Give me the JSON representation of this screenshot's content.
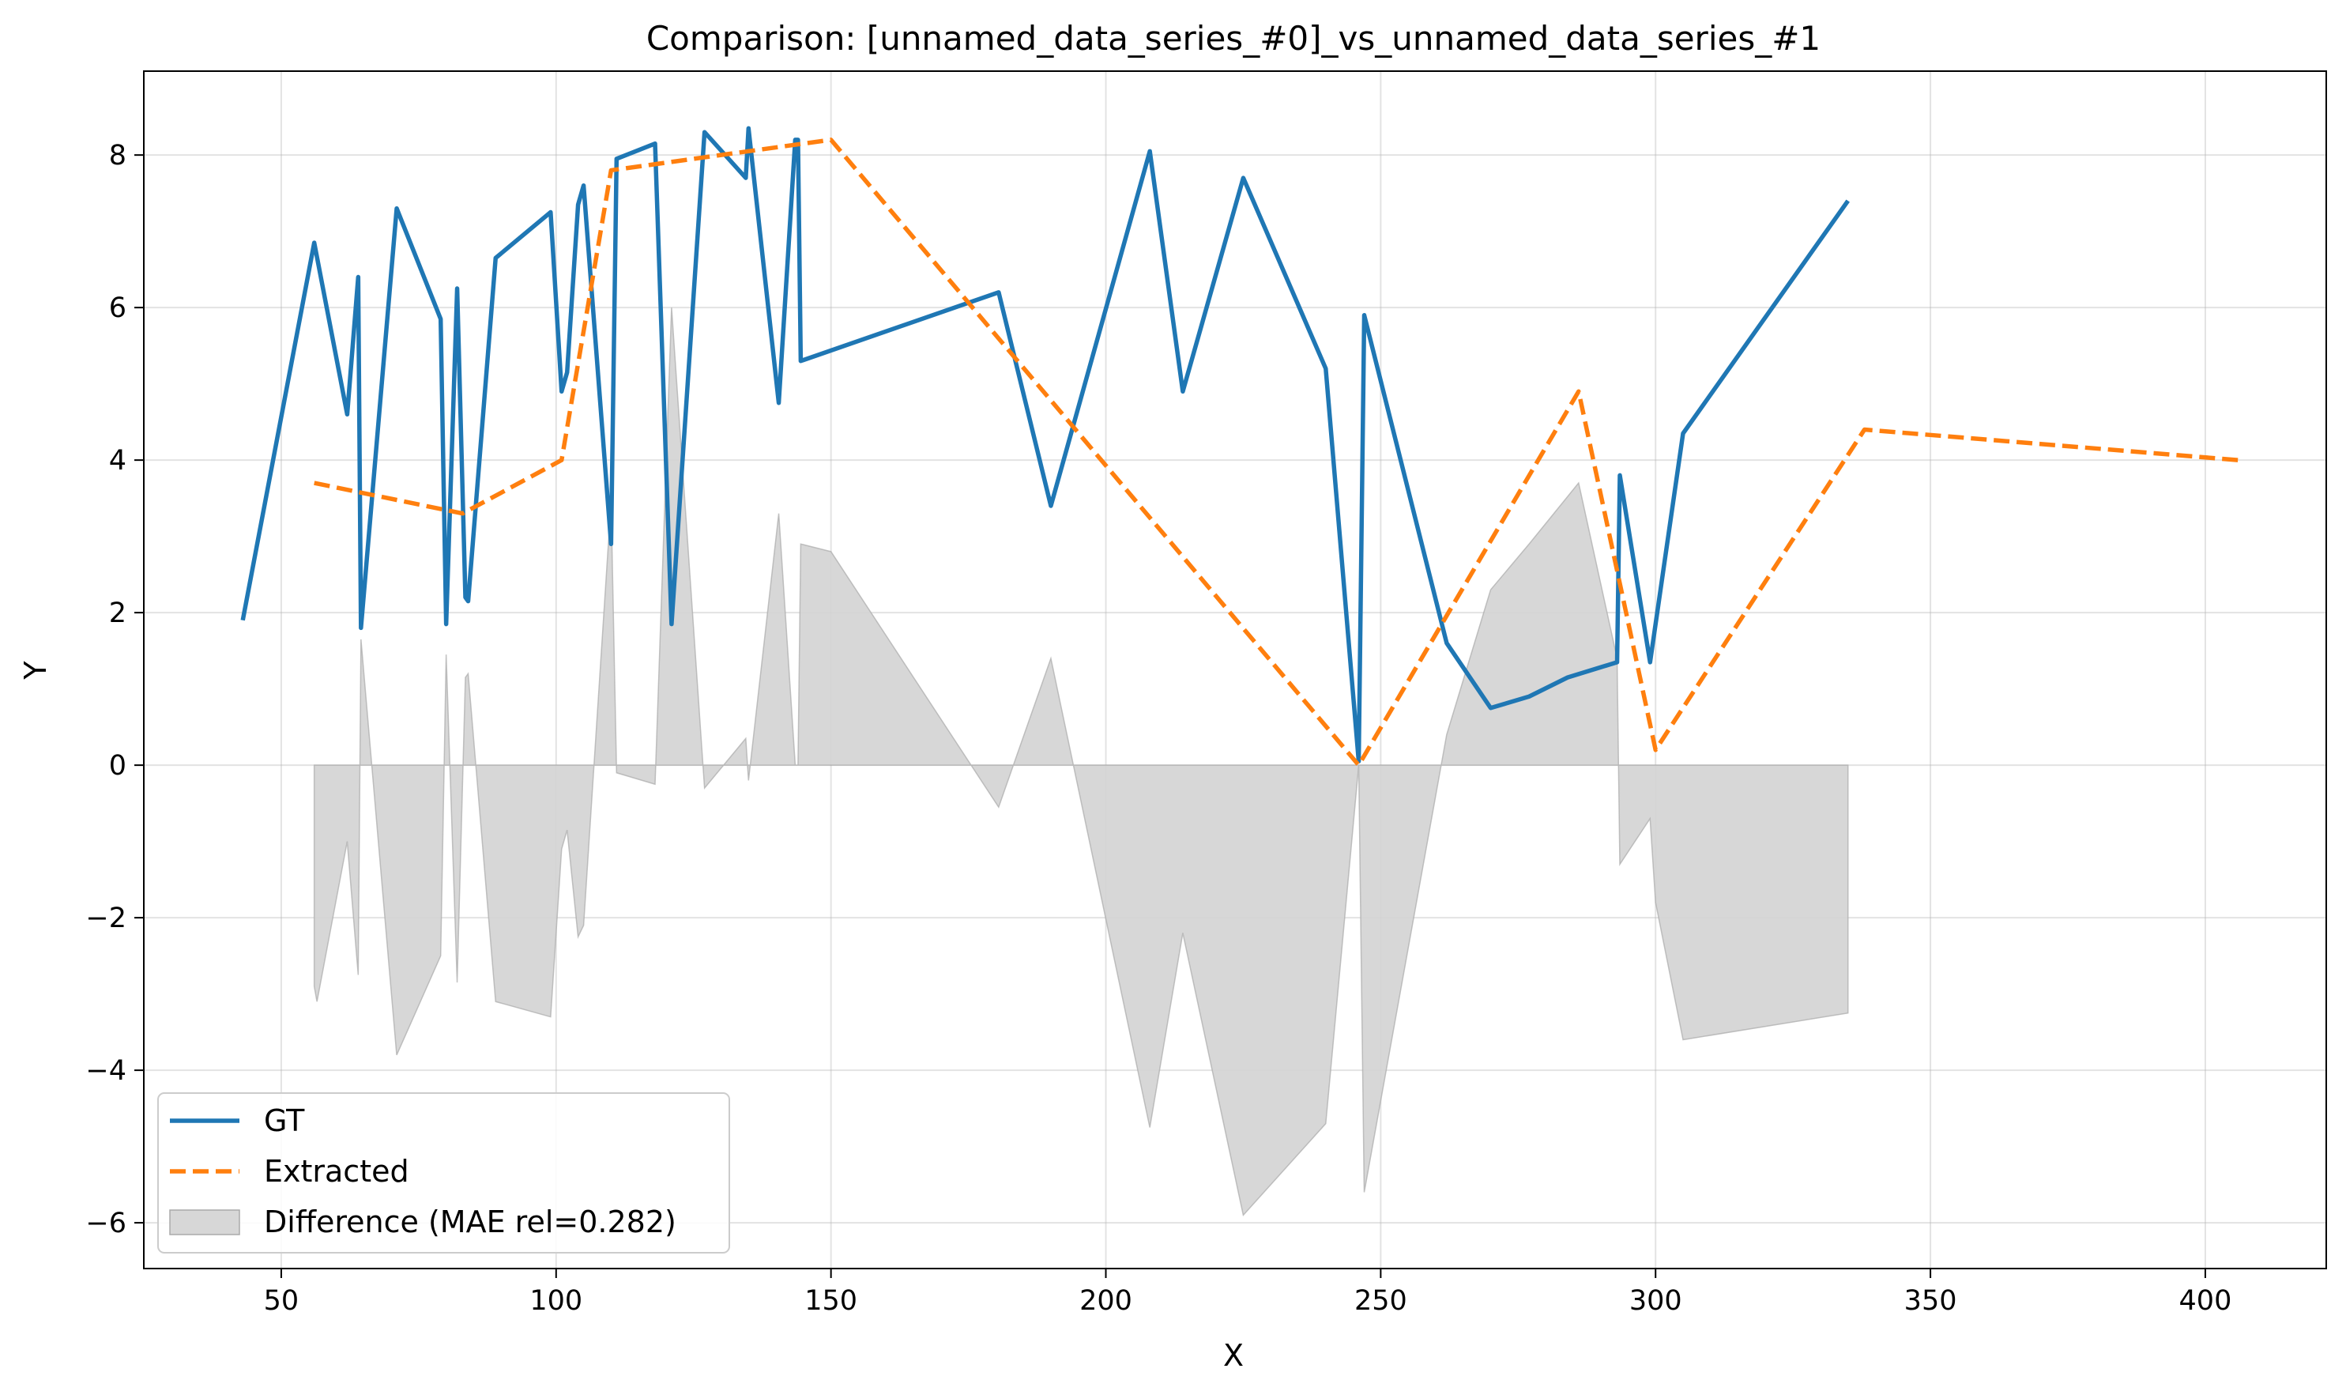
{
  "chart_data": {
    "type": "line",
    "title": "Comparison: [unnamed_data_series_#0]_vs_unnamed_data_series_#1",
    "xlabel": "X",
    "ylabel": "Y",
    "xlim": [
      25,
      422
    ],
    "ylim": [
      -6.6,
      9.1
    ],
    "xticks": [
      50,
      100,
      150,
      200,
      250,
      300,
      350,
      400
    ],
    "yticks": [
      -6,
      -4,
      -2,
      0,
      2,
      4,
      6,
      8
    ],
    "grid": true,
    "legend_position": "lower-left",
    "series": [
      {
        "name": "GT",
        "color": "#1f77b4",
        "style": "solid",
        "x": [
          43,
          56,
          62,
          64,
          64.5,
          71,
          79,
          80,
          82,
          83.5,
          84,
          89,
          99,
          101,
          102,
          104,
          105,
          110,
          111,
          118,
          121,
          127,
          134.5,
          135,
          140.5,
          143.5,
          144,
          144.5,
          180.5,
          190,
          208,
          214,
          225,
          240,
          246,
          247,
          262,
          270,
          277,
          284,
          293,
          293.5,
          299,
          305,
          335
        ],
        "y": [
          1.9,
          6.85,
          4.6,
          6.4,
          1.8,
          7.3,
          5.85,
          1.85,
          6.25,
          2.2,
          2.15,
          6.65,
          7.25,
          4.9,
          5.15,
          7.35,
          7.6,
          2.9,
          7.95,
          8.15,
          1.85,
          8.3,
          7.7,
          8.35,
          4.75,
          8.2,
          8.2,
          5.3,
          6.2,
          3.4,
          8.05,
          4.9,
          7.7,
          5.2,
          0.05,
          5.9,
          1.6,
          0.75,
          0.9,
          1.15,
          1.35,
          3.8,
          1.35,
          4.35,
          7.4
        ]
      },
      {
        "name": "Extracted",
        "color": "#ff7f0e",
        "style": "dashed",
        "x": [
          56,
          83,
          101,
          110,
          150,
          246,
          286,
          300,
          338,
          406
        ],
        "y": [
          3.7,
          3.3,
          4.0,
          7.8,
          8.2,
          0.0,
          4.9,
          0.2,
          4.4,
          4.0
        ]
      }
    ],
    "difference": {
      "name": "Difference (MAE rel=0.282)",
      "color": "#d3d3d3",
      "x": [
        56,
        56.5,
        62,
        64,
        64.5,
        71,
        79,
        80,
        82,
        83.5,
        84,
        89,
        99,
        101,
        102,
        104,
        105,
        110,
        111,
        118,
        121,
        127,
        134.5,
        135,
        140.5,
        143.5,
        144,
        144.5,
        150,
        180.5,
        190,
        208,
        214,
        225,
        240,
        246,
        247,
        262,
        270,
        277,
        286,
        293,
        293.5,
        299,
        300,
        305,
        335
      ],
      "y": [
        -2.9,
        -3.1,
        -1.0,
        -2.75,
        1.65,
        -3.8,
        -2.5,
        1.45,
        -2.85,
        1.15,
        1.2,
        -3.1,
        -3.3,
        -1.1,
        -0.85,
        -2.25,
        -2.1,
        3.45,
        -0.1,
        -0.25,
        6.0,
        -0.3,
        0.35,
        -0.2,
        3.3,
        0.0,
        0.0,
        2.9,
        2.8,
        -0.55,
        1.4,
        -4.75,
        -2.2,
        -5.9,
        -4.7,
        0.0,
        -5.6,
        0.4,
        2.3,
        2.9,
        3.7,
        1.4,
        -1.3,
        -0.7,
        -1.8,
        -3.6,
        -3.25
      ]
    }
  }
}
